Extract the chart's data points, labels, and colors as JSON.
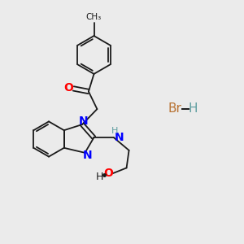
{
  "background_color": "#ebebeb",
  "bond_color": "#1a1a1a",
  "n_color": "#0000ff",
  "o_color": "#ff0000",
  "br_color": "#b87333",
  "h_color": "#5f9ea0",
  "figsize": [
    3.0,
    3.0
  ],
  "dpi": 100,
  "xlim": [
    0,
    10
  ],
  "ylim": [
    0,
    10
  ]
}
